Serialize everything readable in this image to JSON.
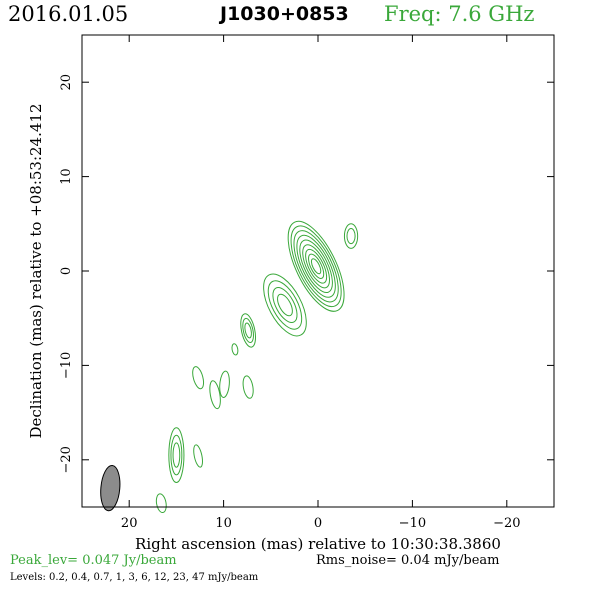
{
  "header": {
    "date": "2016.01.05",
    "source": "J1030+0853",
    "frequency": "Freq: 7.6 GHz"
  },
  "footer": {
    "peak": "Peak_lev=  0.047 Jy/beam",
    "rms": "Rms_noise= 0.04 mJy/beam",
    "levels": "Levels: 0.2, 0.4, 0.7,   1,   3,   6,  12,  23,  47 mJy/beam"
  },
  "colors": {
    "contour": "#3aa83a",
    "beam": "#8c8c8c",
    "frame": "#000000"
  },
  "chart_data": {
    "type": "contour",
    "xlabel": "Right ascension (mas) relative to 10:30:38.3860",
    "ylabel": "Declination (mas) relative to +08:53:24.412",
    "xlim": [
      25.0,
      -25.0
    ],
    "ylim": [
      -25.0,
      25.0
    ],
    "xticks": [
      20,
      10,
      0,
      -10,
      -20
    ],
    "xtick_labels": [
      "20",
      "10",
      "0",
      "−10",
      "−20"
    ],
    "yticks": [
      20,
      10,
      0,
      -10,
      -20
    ],
    "ytick_labels": [
      "20",
      "10",
      "0",
      "−10",
      "−20"
    ],
    "contour_levels_mJy": [
      0.2,
      0.4,
      0.7,
      1,
      3,
      6,
      12,
      23,
      47
    ],
    "peak_Jy_per_beam": 0.047,
    "rms_mJy_per_beam": 0.04,
    "beam": {
      "x": 22.0,
      "y": -23.0,
      "major": 2.4,
      "minor": 1.0,
      "pa_deg": 5
    },
    "components": [
      {
        "x": 0.2,
        "y": 0.5,
        "major": 5.2,
        "minor": 2.1,
        "pa_deg": -26,
        "levels": 9
      },
      {
        "x": 3.5,
        "y": -3.6,
        "major": 3.6,
        "minor": 1.7,
        "pa_deg": -28,
        "levels": 4
      },
      {
        "x": -3.5,
        "y": 3.7,
        "major": 1.3,
        "minor": 0.7,
        "pa_deg": 0,
        "levels": 2
      },
      {
        "x": 7.4,
        "y": -6.3,
        "major": 1.8,
        "minor": 0.7,
        "pa_deg": -12,
        "levels": 3
      },
      {
        "x": 8.8,
        "y": -8.3,
        "major": 0.6,
        "minor": 0.3,
        "pa_deg": -10,
        "levels": 1
      },
      {
        "x": 12.7,
        "y": -11.3,
        "major": 1.2,
        "minor": 0.5,
        "pa_deg": -15,
        "levels": 1
      },
      {
        "x": 10.9,
        "y": -13.1,
        "major": 1.5,
        "minor": 0.5,
        "pa_deg": -10,
        "levels": 1
      },
      {
        "x": 9.9,
        "y": -12.0,
        "major": 1.4,
        "minor": 0.5,
        "pa_deg": 5,
        "levels": 1
      },
      {
        "x": 7.4,
        "y": -12.3,
        "major": 1.2,
        "minor": 0.5,
        "pa_deg": -10,
        "levels": 1
      },
      {
        "x": 15.0,
        "y": -19.5,
        "major": 2.9,
        "minor": 0.8,
        "pa_deg": 0,
        "levels": 3
      },
      {
        "x": 12.7,
        "y": -19.6,
        "major": 1.2,
        "minor": 0.4,
        "pa_deg": -12,
        "levels": 1
      },
      {
        "x": 16.6,
        "y": -24.6,
        "major": 1.0,
        "minor": 0.5,
        "pa_deg": -10,
        "levels": 1
      }
    ]
  }
}
